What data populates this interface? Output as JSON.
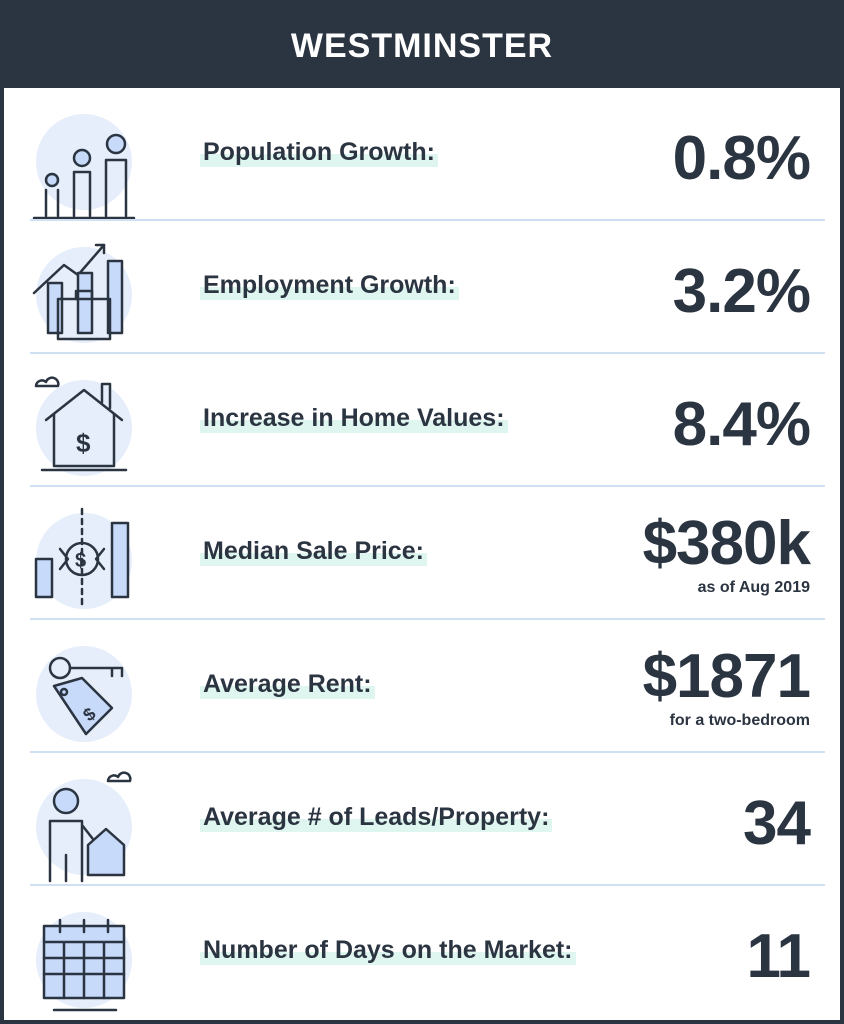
{
  "header": {
    "title": "WESTMINSTER"
  },
  "rows": [
    {
      "label": "Population Growth:",
      "value": "0.8%"
    },
    {
      "label": "Employment Growth:",
      "value": "3.2%"
    },
    {
      "label": "Increase in Home Values:",
      "value": "8.4%"
    },
    {
      "label": "Median Sale Price:",
      "value": "$380k",
      "note": "as of Aug 2019"
    },
    {
      "label": "Average Rent:",
      "value": "$1871",
      "note": "for a two-bedroom"
    },
    {
      "label": "Average # of Leads/Property:",
      "value": "34"
    },
    {
      "label": "Number of Days on the Market:",
      "value": "11"
    }
  ]
}
